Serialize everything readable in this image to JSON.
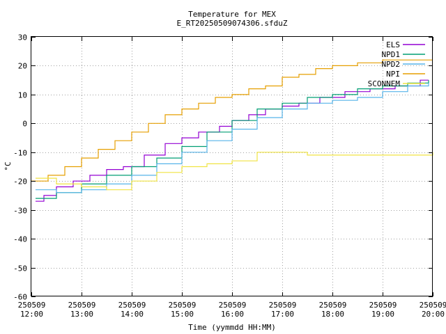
{
  "chart_data": {
    "type": "line",
    "title": "Temperature for MEX",
    "subtitle": "E_RT20250509074306.sfduZ",
    "xlabel": "Time (yymmdd HH:MM)",
    "ylabel": "°C",
    "ylim": [
      -60,
      30
    ],
    "yticks": [
      -60,
      -50,
      -40,
      -30,
      -20,
      -10,
      0,
      10,
      20,
      30
    ],
    "xlim": [
      "2025-05-09 12:00",
      "2025-05-09 20:00"
    ],
    "xticks": [
      {
        "date": "250509",
        "time": "12:00"
      },
      {
        "date": "250509",
        "time": "13:00"
      },
      {
        "date": "250509",
        "time": "14:00"
      },
      {
        "date": "250509",
        "time": "15:00"
      },
      {
        "date": "250509",
        "time": "16:00"
      },
      {
        "date": "250509",
        "time": "17:00"
      },
      {
        "date": "250509",
        "time": "18:00"
      },
      {
        "date": "250509",
        "time": "19:00"
      },
      {
        "date": "250509",
        "time": "20:00"
      }
    ],
    "grid": true,
    "legend_position": "top-right",
    "series": [
      {
        "name": "ELS",
        "color": "#9400d3",
        "x": [
          "2025-05-09 12:05",
          "2025-05-09 12:15",
          "2025-05-09 12:30",
          "2025-05-09 12:50",
          "2025-05-09 13:10",
          "2025-05-09 13:30",
          "2025-05-09 13:50",
          "2025-05-09 14:15",
          "2025-05-09 14:40",
          "2025-05-09 15:00",
          "2025-05-09 15:20",
          "2025-05-09 15:45",
          "2025-05-09 16:00",
          "2025-05-09 16:20",
          "2025-05-09 16:40",
          "2025-05-09 17:00",
          "2025-05-09 17:20",
          "2025-05-09 17:45",
          "2025-05-09 18:15",
          "2025-05-09 18:45",
          "2025-05-09 19:15",
          "2025-05-09 19:45",
          "2025-05-09 19:55"
        ],
        "values": [
          -27,
          -25,
          -22,
          -20,
          -18,
          -16,
          -15,
          -11,
          -7,
          -5,
          -3,
          -1,
          1,
          3,
          5,
          6,
          7,
          9,
          11,
          12,
          13,
          15,
          15
        ]
      },
      {
        "name": "NPD1",
        "color": "#009e73",
        "x": [
          "2025-05-09 12:05",
          "2025-05-09 12:30",
          "2025-05-09 13:00",
          "2025-05-09 13:30",
          "2025-05-09 14:00",
          "2025-05-09 14:30",
          "2025-05-09 15:00",
          "2025-05-09 15:30",
          "2025-05-09 16:00",
          "2025-05-09 16:30",
          "2025-05-09 17:00",
          "2025-05-09 17:30",
          "2025-05-09 18:00",
          "2025-05-09 18:30",
          "2025-05-09 19:00",
          "2025-05-09 19:30",
          "2025-05-09 19:55"
        ],
        "values": [
          -26,
          -24,
          -21,
          -18,
          -15,
          -12,
          -8,
          -3,
          1,
          5,
          7,
          9,
          10,
          12,
          13,
          14,
          15
        ]
      },
      {
        "name": "NPD2",
        "color": "#56b4e9",
        "x": [
          "2025-05-09 12:05",
          "2025-05-09 12:30",
          "2025-05-09 13:00",
          "2025-05-09 13:30",
          "2025-05-09 14:00",
          "2025-05-09 14:30",
          "2025-05-09 15:00",
          "2025-05-09 15:30",
          "2025-05-09 16:00",
          "2025-05-09 16:30",
          "2025-05-09 17:00",
          "2025-05-09 17:30",
          "2025-05-09 18:00",
          "2025-05-09 18:30",
          "2025-05-09 19:00",
          "2025-05-09 19:30",
          "2025-05-09 19:55"
        ],
        "values": [
          -23,
          -24,
          -23,
          -21,
          -18,
          -14,
          -10,
          -6,
          -2,
          2,
          5,
          7,
          8,
          9,
          11,
          13,
          14
        ]
      },
      {
        "name": "NPI",
        "color": "#e69f00",
        "x": [
          "2025-05-09 12:00",
          "2025-05-09 12:20",
          "2025-05-09 12:40",
          "2025-05-09 13:00",
          "2025-05-09 13:20",
          "2025-05-09 13:40",
          "2025-05-09 14:00",
          "2025-05-09 14:20",
          "2025-05-09 14:40",
          "2025-05-09 15:00",
          "2025-05-09 15:20",
          "2025-05-09 15:40",
          "2025-05-09 16:00",
          "2025-05-09 16:20",
          "2025-05-09 16:40",
          "2025-05-09 17:00",
          "2025-05-09 17:20",
          "2025-05-09 17:40",
          "2025-05-09 18:00",
          "2025-05-09 18:30",
          "2025-05-09 19:00",
          "2025-05-09 19:30",
          "2025-05-09 20:00"
        ],
        "values": [
          -20,
          -18,
          -15,
          -12,
          -9,
          -6,
          -3,
          0,
          3,
          5,
          7,
          9,
          10,
          12,
          13,
          16,
          17,
          19,
          20,
          21,
          22,
          22,
          22
        ]
      },
      {
        "name": "SCONNEM",
        "color": "#f0e442",
        "x": [
          "2025-05-09 12:05",
          "2025-05-09 12:30",
          "2025-05-09 13:00",
          "2025-05-09 13:30",
          "2025-05-09 14:00",
          "2025-05-09 14:30",
          "2025-05-09 15:00",
          "2025-05-09 15:30",
          "2025-05-09 16:00",
          "2025-05-09 16:30",
          "2025-05-09 17:00",
          "2025-05-09 17:30",
          "2025-05-09 18:00",
          "2025-05-09 18:30",
          "2025-05-09 19:00",
          "2025-05-09 19:30",
          "2025-05-09 20:00"
        ],
        "values": [
          -19,
          -21,
          -22,
          -23,
          -20,
          -17,
          -15,
          -14,
          -13,
          -10,
          -10,
          -11,
          -11,
          -11,
          -11,
          -11,
          -10
        ]
      }
    ]
  }
}
